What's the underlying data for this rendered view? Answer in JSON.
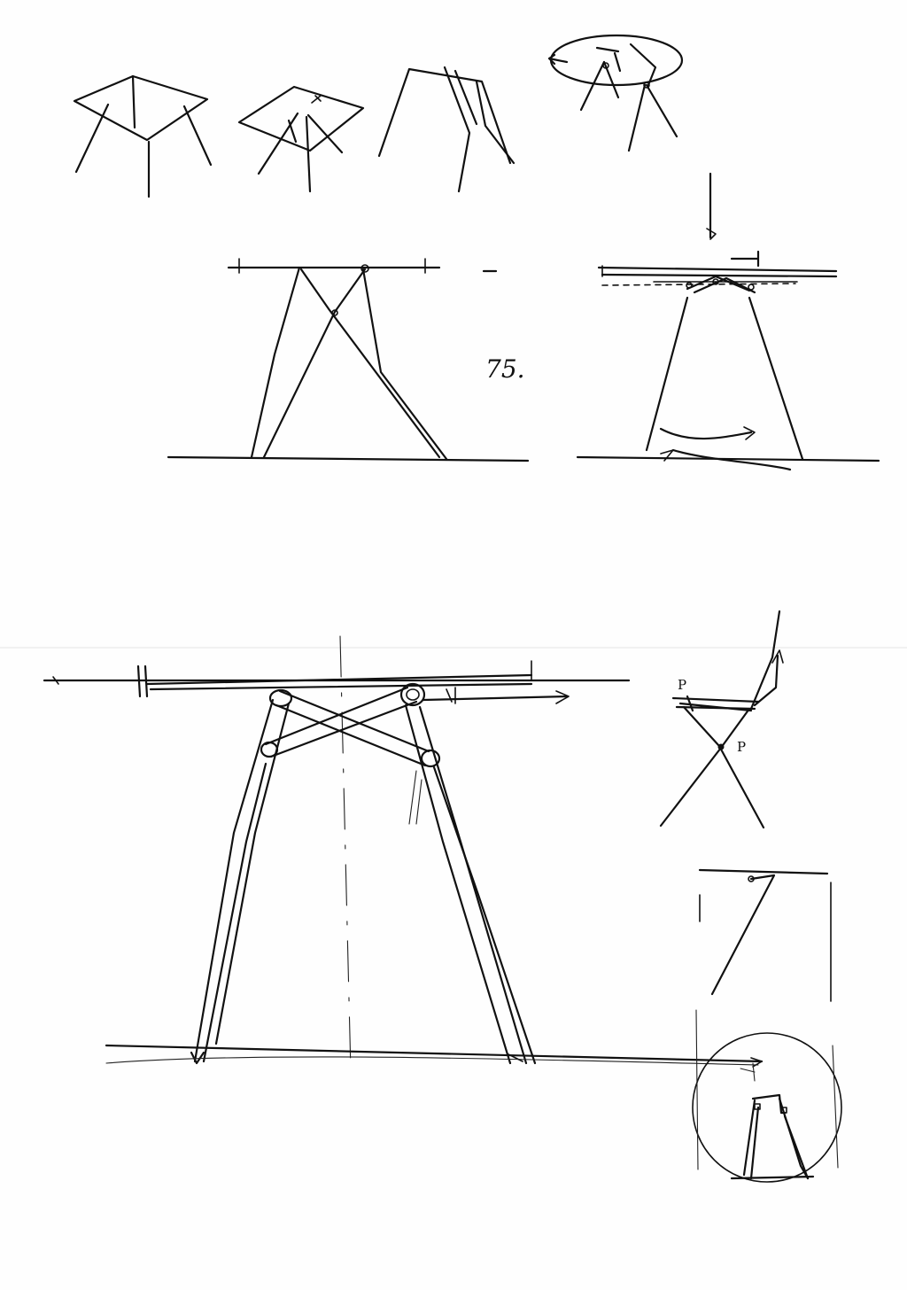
{
  "sheet": {
    "dimension_note": "75.",
    "pivot_label_top": "P",
    "pivot_label_center": "P",
    "colors": {
      "ink": "#111111",
      "paper": "#fefefe"
    }
  }
}
